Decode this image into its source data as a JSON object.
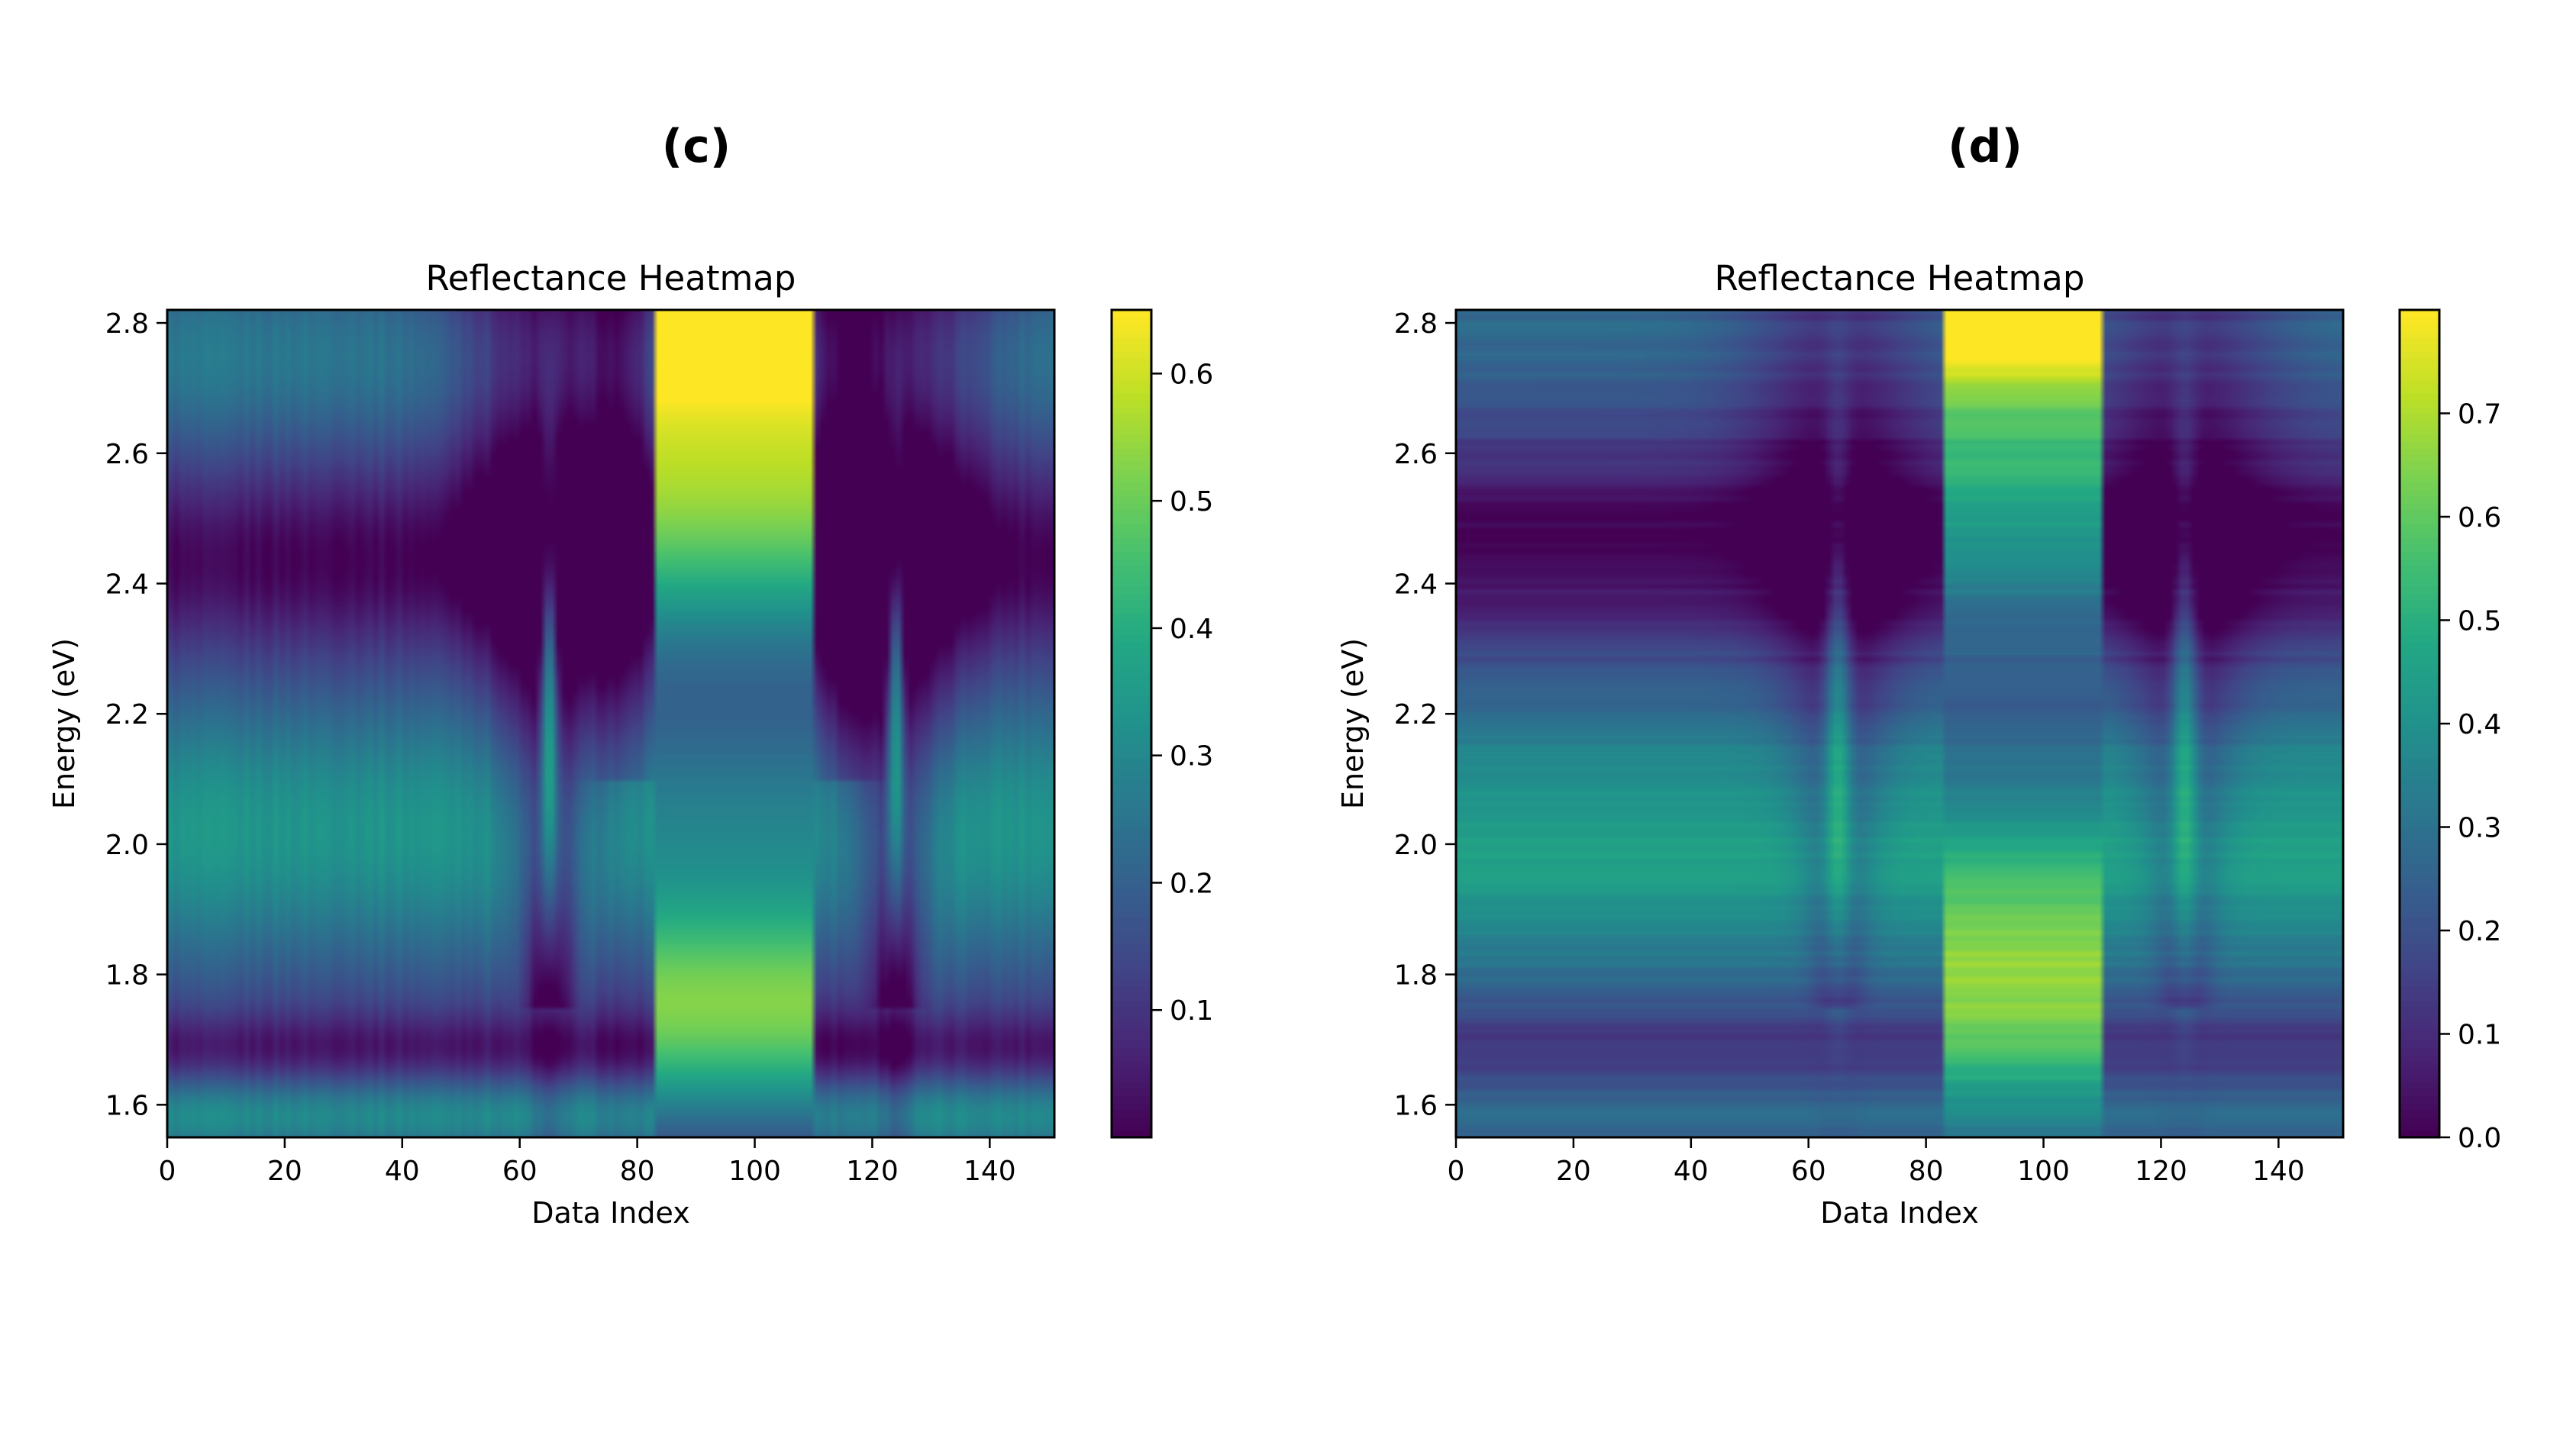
{
  "chart_data": [
    {
      "type": "heatmap",
      "panel_label": "(c)",
      "title": "Reflectance Heatmap",
      "xlabel": "Data Index",
      "ylabel": "Energy (eV)",
      "xlim": [
        0,
        151
      ],
      "ylim": [
        1.55,
        2.82
      ],
      "xticks": [
        0,
        20,
        40,
        60,
        80,
        100,
        120,
        140
      ],
      "yticks": [
        1.6,
        1.8,
        2.0,
        2.2,
        2.4,
        2.6,
        2.8
      ],
      "colormap": "viridis",
      "colorbar": {
        "min": 0.0,
        "max": 0.65,
        "ticks": [
          0.1,
          0.2,
          0.3,
          0.4,
          0.5,
          0.6
        ]
      },
      "texture": "vertical",
      "regions": [
        {
          "x_range": [
            83,
            110
          ],
          "description_values": {
            "1.6-1.9": 0.52,
            "2.2": 0.18,
            "2.8": 0.62
          }
        }
      ],
      "ridges": [
        65,
        124
      ]
    },
    {
      "type": "heatmap",
      "panel_label": "(d)",
      "title": "Reflectance Heatmap",
      "xlabel": "Data Index",
      "ylabel": "Energy (eV)",
      "xlim": [
        0,
        151
      ],
      "ylim": [
        1.55,
        2.82
      ],
      "xticks": [
        0,
        20,
        40,
        60,
        80,
        100,
        120,
        140
      ],
      "yticks": [
        1.6,
        1.8,
        2.0,
        2.2,
        2.4,
        2.6,
        2.8
      ],
      "colormap": "viridis",
      "colorbar": {
        "min": 0.0,
        "max": 0.8,
        "ticks": [
          0.0,
          0.1,
          0.2,
          0.3,
          0.4,
          0.5,
          0.6,
          0.7
        ]
      },
      "texture": "horizontal",
      "regions": [
        {
          "x_range": [
            83,
            110
          ],
          "description_values": {
            "1.6-1.9": 0.6,
            "2.2": 0.15,
            "2.8": 0.72
          }
        }
      ],
      "ridges": [
        65,
        124
      ]
    }
  ]
}
